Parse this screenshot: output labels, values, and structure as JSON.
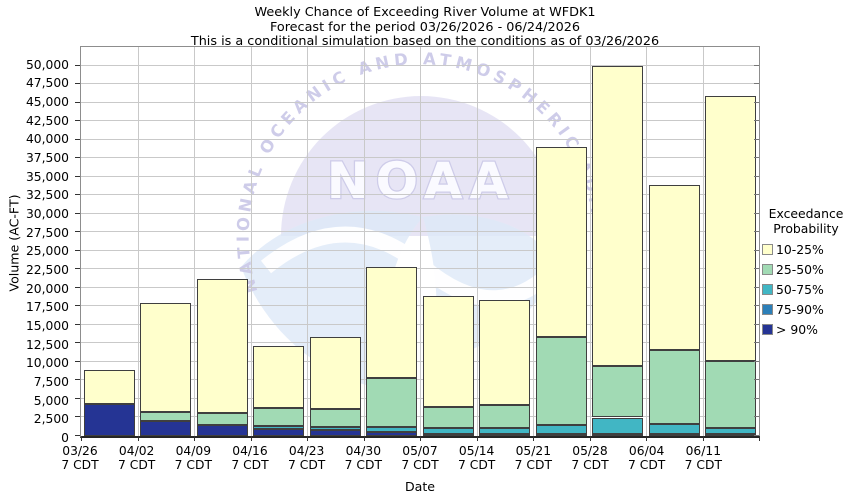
{
  "titles": {
    "line1": "Weekly Chance of Exceeding River Volume at WFDK1",
    "line2": "Forecast for the period 03/26/2026 - 06/24/2026",
    "line3": "This is a conditional simulation based on the conditions as of 03/26/2026"
  },
  "watermark": {
    "arc_text": "NATIONAL OCEANIC AND ATMOSPHERIC ADMI",
    "logo_text": "NOAA"
  },
  "legend": {
    "title_line1": "Exceedance",
    "title_line2": "Probability",
    "entries": [
      {
        "label": "10-25%",
        "color": "#FFFFCC"
      },
      {
        "label": "25-50%",
        "color": "#A1DAB4"
      },
      {
        "label": "50-75%",
        "color": "#41B6C4"
      },
      {
        "label": "75-90%",
        "color": "#2C7FB8"
      },
      {
        "label": "> 90%",
        "color": "#253494"
      }
    ]
  },
  "chart_data": {
    "type": "bar",
    "stacked": true,
    "title": "Weekly Chance of Exceeding River Volume at WFDK1",
    "xlabel": "Date",
    "ylabel": "Volume (AC-FT)",
    "ylim": [
      0,
      50000
    ],
    "ytick_step": 2500,
    "grid": true,
    "legend_title": "Exceedance Probability",
    "legend_position": "right",
    "categories": [
      "03/26",
      "04/02",
      "04/09",
      "04/16",
      "04/23",
      "04/30",
      "05/07",
      "05/14",
      "05/21",
      "05/28",
      "06/04",
      "06/11"
    ],
    "category_sublabel": "7 CDT",
    "series": [
      {
        "name": "> 90%",
        "color": "#253494",
        "values": [
          4350,
          2050,
          1550,
          900,
          800,
          500,
          300,
          300,
          250,
          250,
          250,
          250
        ]
      },
      {
        "name": "75-90%",
        "color": "#2C7FB8",
        "values": [
          0,
          0,
          0,
          0,
          0,
          0,
          0,
          0,
          0,
          0,
          0,
          0
        ]
      },
      {
        "name": "50-75%",
        "color": "#41B6C4",
        "values": [
          0,
          0,
          0,
          400,
          400,
          750,
          750,
          750,
          1250,
          2250,
          1350,
          800
        ]
      },
      {
        "name": "25-50%",
        "color": "#A1DAB4",
        "values": [
          0,
          1200,
          1600,
          2500,
          2400,
          6600,
          2850,
          3100,
          11800,
          7000,
          10050,
          9050
        ]
      },
      {
        "name": "10-25%",
        "color": "#FFFFCC",
        "values": [
          4550,
          14750,
          18050,
          8400,
          9700,
          14950,
          15000,
          14250,
          25750,
          40400,
          22200,
          35800
        ]
      }
    ],
    "totals": [
      8900,
      18000,
      21200,
      12200,
      13300,
      22800,
      18900,
      18400,
      39050,
      49900,
      33850,
      45900
    ]
  }
}
